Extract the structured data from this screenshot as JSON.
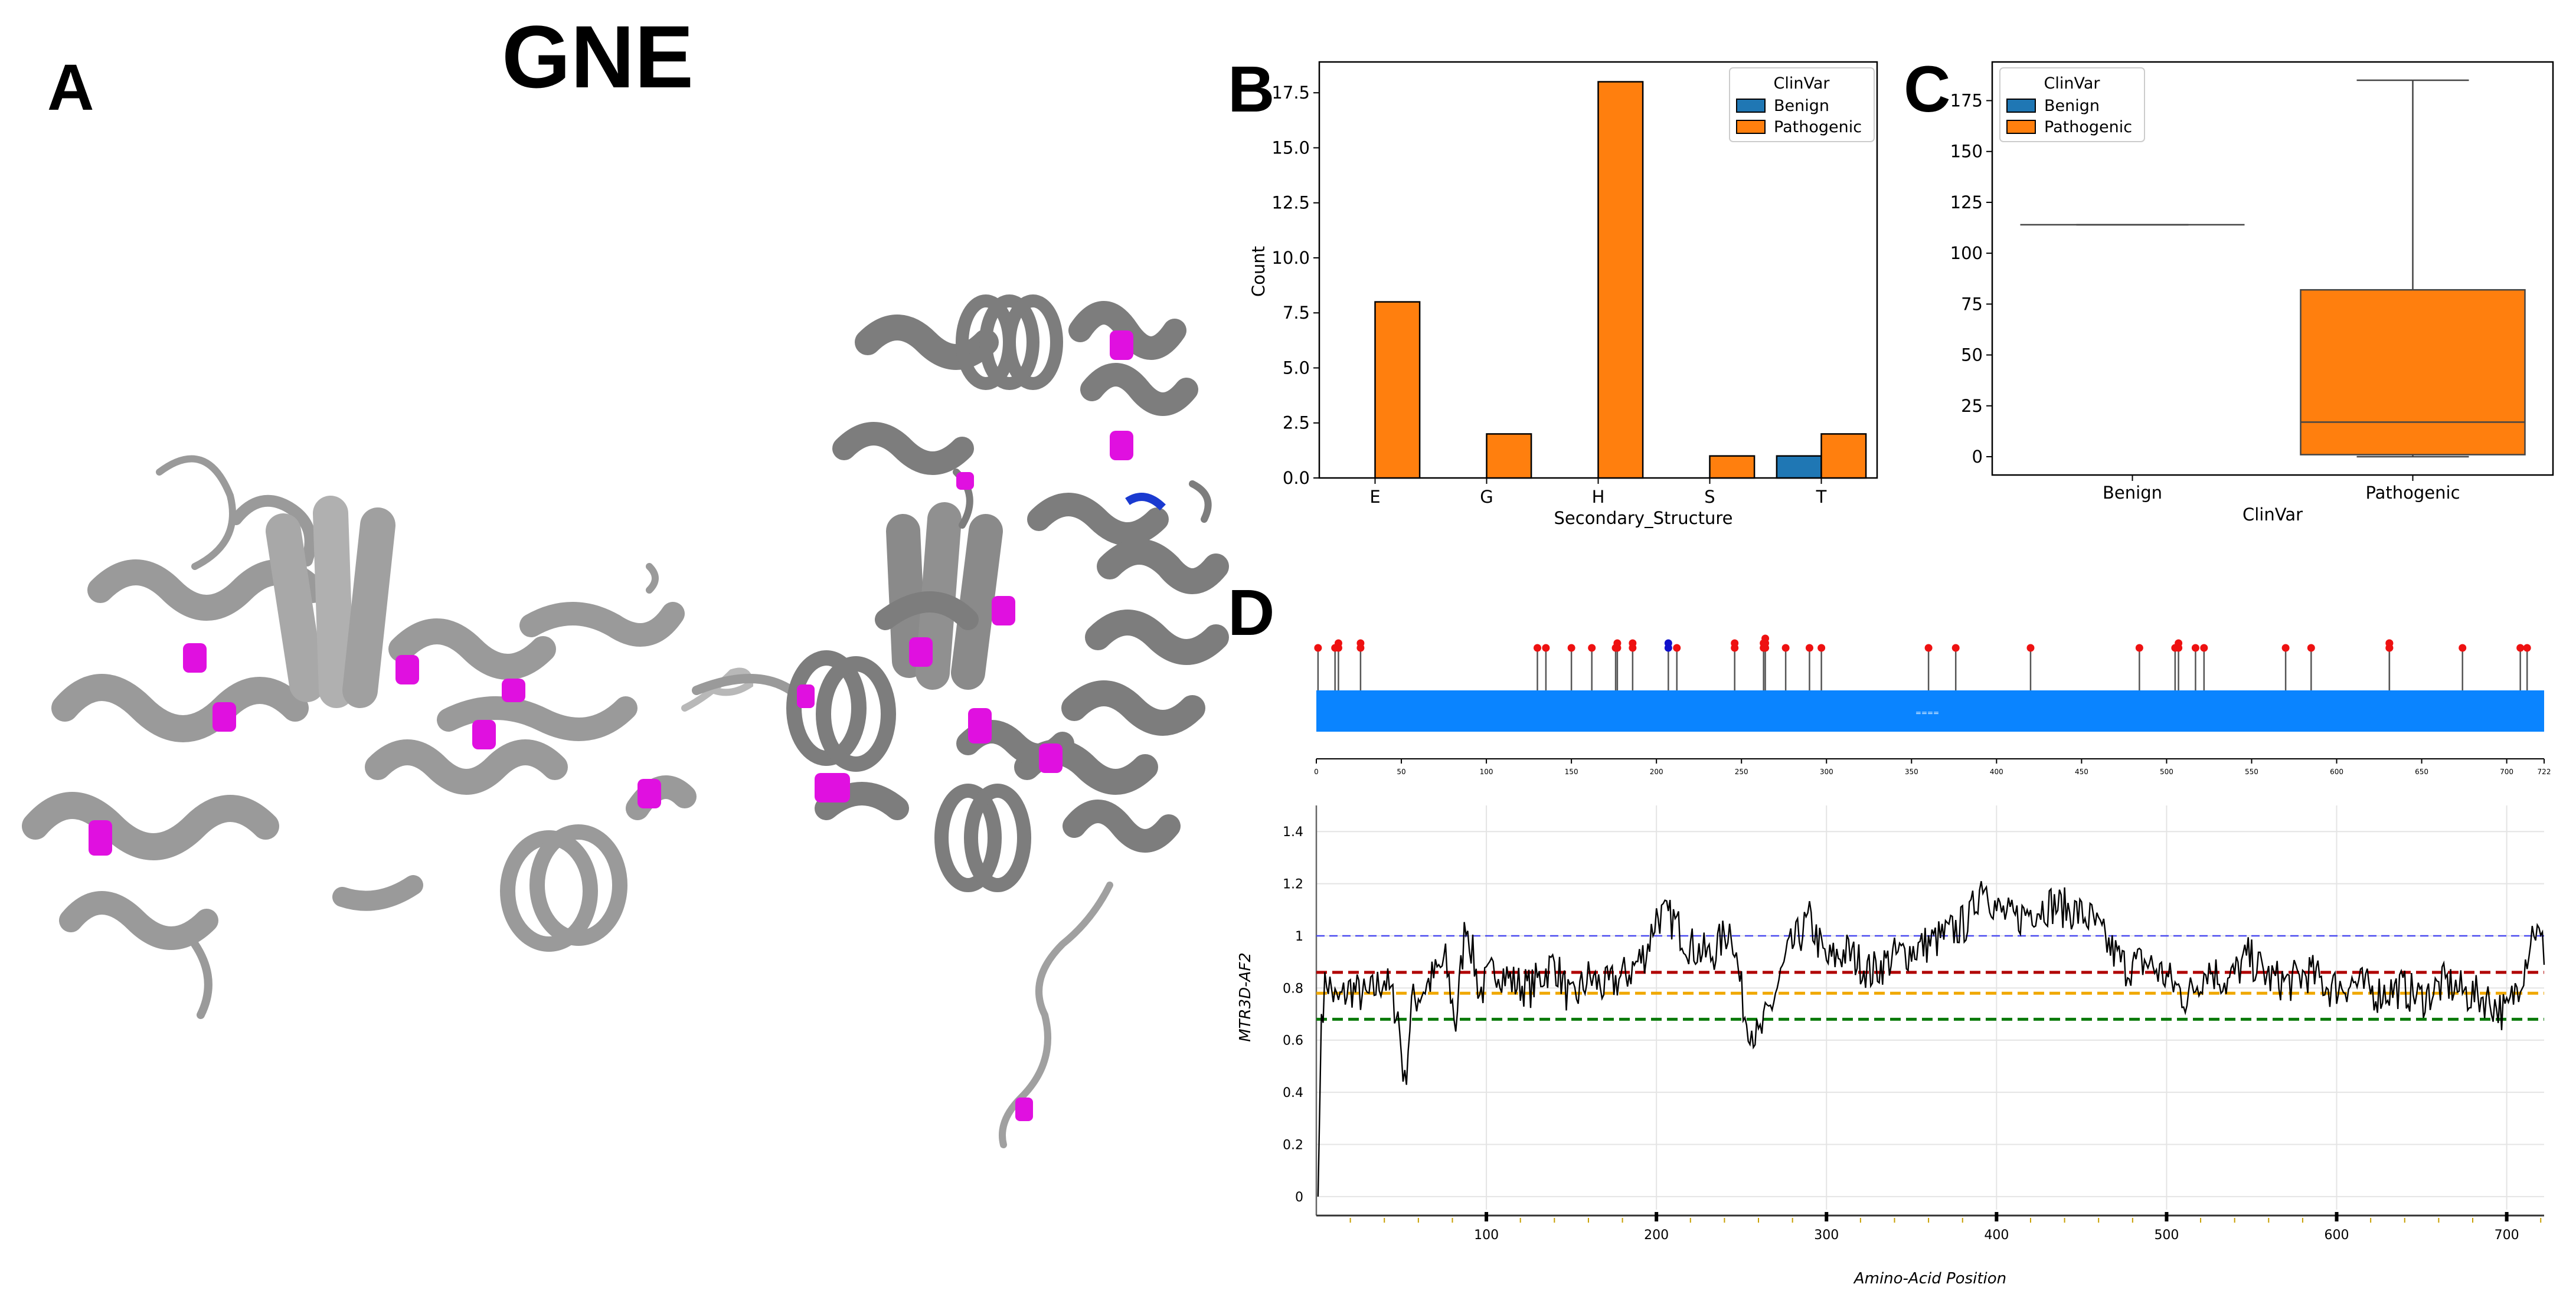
{
  "figure": {
    "gene_title": "GNE",
    "panel_labels": {
      "a": "A",
      "b": "B",
      "c": "C",
      "d": "D"
    }
  },
  "colors": {
    "benign": "#1f77b4",
    "pathogenic": "#ff7f0e",
    "lollipop_red": "#ee1111",
    "lollipop_blue": "#1111cc",
    "domain_bar": "#0a84ff",
    "ribbon_gray": "#9a9a9a",
    "ribbon_magenta": "#e010e0",
    "line_blue": "#4a4af0",
    "line_red": "#b00000",
    "line_orange": "#f0a800",
    "line_green": "#0a7a0a"
  },
  "chart_data": [
    {
      "id": "B",
      "type": "bar",
      "categories": [
        "E",
        "G",
        "H",
        "S",
        "T"
      ],
      "series": [
        {
          "name": "Benign",
          "values": [
            0,
            0,
            0,
            0,
            1
          ]
        },
        {
          "name": "Pathogenic",
          "values": [
            8,
            2,
            18,
            1,
            2
          ]
        }
      ],
      "xlabel": "Secondary_Structure",
      "ylabel": "Count",
      "ylim": [
        0,
        18.9
      ],
      "yticks": [
        0.0,
        2.5,
        5.0,
        7.5,
        10.0,
        12.5,
        15.0,
        17.5
      ],
      "ytick_labels": [
        "0.0",
        "2.5",
        "5.0",
        "7.5",
        "10.0",
        "12.5",
        "15.0",
        "17.5"
      ],
      "legend": {
        "title": "ClinVar",
        "entries": [
          "Benign",
          "Pathogenic"
        ],
        "placement": "top-right"
      }
    },
    {
      "id": "C",
      "type": "box",
      "categories": [
        "Benign",
        "Pathogenic"
      ],
      "boxes": [
        {
          "name": "Benign",
          "min": 114,
          "q1": 114,
          "median": 114,
          "q3": 114,
          "max": 114
        },
        {
          "name": "Pathogenic",
          "min": 0,
          "q1": 1,
          "median": 17,
          "q3": 82,
          "max": 185
        }
      ],
      "xlabel": "ClinVar",
      "ylabel": "",
      "ylim": [
        -9,
        194
      ],
      "yticks": [
        0,
        25,
        50,
        75,
        100,
        125,
        150,
        175
      ],
      "ytick_labels": [
        "0",
        "25",
        "50",
        "75",
        "100",
        "125",
        "150",
        "175"
      ],
      "legend": {
        "title": "ClinVar",
        "entries": [
          "Benign",
          "Pathogenic"
        ],
        "placement": "top-left"
      }
    },
    {
      "id": "D-lollipop",
      "type": "lollipop",
      "protein_length": 722,
      "domain_label": "====",
      "xticks": [
        0,
        50,
        100,
        150,
        200,
        250,
        300,
        350,
        400,
        450,
        500,
        550,
        600,
        650,
        700,
        722
      ],
      "xtick_labels": [
        "0",
        "50",
        "100",
        "150",
        "200",
        "250",
        "300",
        "350",
        "400",
        "450",
        "500",
        "550",
        "600",
        "650",
        "700",
        "722"
      ],
      "variants": [
        {
          "pos": 1,
          "count": 1,
          "class": "pathogenic"
        },
        {
          "pos": 11,
          "count": 1,
          "class": "pathogenic"
        },
        {
          "pos": 13,
          "count": 2,
          "class": "pathogenic"
        },
        {
          "pos": 26,
          "count": 2,
          "class": "pathogenic"
        },
        {
          "pos": 130,
          "count": 1,
          "class": "pathogenic"
        },
        {
          "pos": 135,
          "count": 1,
          "class": "pathogenic"
        },
        {
          "pos": 150,
          "count": 1,
          "class": "pathogenic"
        },
        {
          "pos": 162,
          "count": 1,
          "class": "pathogenic"
        },
        {
          "pos": 176,
          "count": 1,
          "class": "pathogenic"
        },
        {
          "pos": 177,
          "count": 2,
          "class": "pathogenic"
        },
        {
          "pos": 186,
          "count": 2,
          "class": "pathogenic"
        },
        {
          "pos": 207,
          "count": 2,
          "class": "benign"
        },
        {
          "pos": 212,
          "count": 1,
          "class": "pathogenic"
        },
        {
          "pos": 246,
          "count": 2,
          "class": "pathogenic"
        },
        {
          "pos": 263,
          "count": 2,
          "class": "pathogenic"
        },
        {
          "pos": 264,
          "count": 3,
          "class": "pathogenic"
        },
        {
          "pos": 276,
          "count": 1,
          "class": "pathogenic"
        },
        {
          "pos": 290,
          "count": 1,
          "class": "pathogenic"
        },
        {
          "pos": 297,
          "count": 1,
          "class": "pathogenic"
        },
        {
          "pos": 360,
          "count": 1,
          "class": "pathogenic"
        },
        {
          "pos": 376,
          "count": 1,
          "class": "pathogenic"
        },
        {
          "pos": 420,
          "count": 1,
          "class": "pathogenic"
        },
        {
          "pos": 484,
          "count": 1,
          "class": "pathogenic"
        },
        {
          "pos": 505,
          "count": 1,
          "class": "pathogenic"
        },
        {
          "pos": 507,
          "count": 2,
          "class": "pathogenic"
        },
        {
          "pos": 517,
          "count": 1,
          "class": "pathogenic"
        },
        {
          "pos": 522,
          "count": 1,
          "class": "pathogenic"
        },
        {
          "pos": 570,
          "count": 1,
          "class": "pathogenic"
        },
        {
          "pos": 585,
          "count": 1,
          "class": "pathogenic"
        },
        {
          "pos": 631,
          "count": 2,
          "class": "pathogenic"
        },
        {
          "pos": 631,
          "count": 2,
          "class": "pathogenic"
        },
        {
          "pos": 674,
          "count": 1,
          "class": "pathogenic"
        },
        {
          "pos": 708,
          "count": 1,
          "class": "pathogenic"
        },
        {
          "pos": 712,
          "count": 1,
          "class": "pathogenic"
        }
      ]
    },
    {
      "id": "D-line",
      "type": "line",
      "xlabel": "Amino-Acid Position",
      "ylabel": "MTR3D-AF2",
      "xlim": [
        0,
        722
      ],
      "ylim": [
        -0.05,
        1.5
      ],
      "xticks": [
        100,
        200,
        300,
        400,
        500,
        600,
        700
      ],
      "xtick_labels": [
        "100",
        "200",
        "300",
        "400",
        "500",
        "600",
        "700"
      ],
      "yticks": [
        0,
        0.2,
        0.4,
        0.6,
        0.8,
        1,
        1.2,
        1.4
      ],
      "ytick_labels": [
        "0",
        "0.2",
        "0.4",
        "0.6",
        "0.8",
        "1",
        "1.2",
        "1.4"
      ],
      "thresholds": [
        {
          "name": "blue",
          "value": 1.0,
          "color": "#4a4af0"
        },
        {
          "name": "red",
          "value": 0.86,
          "color": "#b00000"
        },
        {
          "name": "orange",
          "value": 0.78,
          "color": "#f0a800"
        },
        {
          "name": "green",
          "value": 0.68,
          "color": "#0a7a0a"
        }
      ],
      "series_anchors": [
        [
          1,
          0.0
        ],
        [
          3,
          0.7
        ],
        [
          6,
          0.84
        ],
        [
          12,
          0.74
        ],
        [
          20,
          0.8
        ],
        [
          30,
          0.76
        ],
        [
          40,
          0.84
        ],
        [
          48,
          0.7
        ],
        [
          52,
          0.42
        ],
        [
          56,
          0.74
        ],
        [
          66,
          0.82
        ],
        [
          76,
          0.9
        ],
        [
          82,
          0.66
        ],
        [
          88,
          1.07
        ],
        [
          96,
          0.78
        ],
        [
          106,
          0.88
        ],
        [
          116,
          0.82
        ],
        [
          126,
          0.8
        ],
        [
          140,
          0.9
        ],
        [
          150,
          0.74
        ],
        [
          160,
          0.84
        ],
        [
          170,
          0.8
        ],
        [
          184,
          0.86
        ],
        [
          194,
          0.94
        ],
        [
          200,
          1.08
        ],
        [
          210,
          1.06
        ],
        [
          220,
          0.96
        ],
        [
          232,
          0.92
        ],
        [
          244,
          1.04
        ],
        [
          252,
          0.7
        ],
        [
          260,
          0.6
        ],
        [
          268,
          0.74
        ],
        [
          278,
          0.94
        ],
        [
          290,
          1.06
        ],
        [
          300,
          0.9
        ],
        [
          312,
          0.94
        ],
        [
          326,
          0.86
        ],
        [
          340,
          0.92
        ],
        [
          356,
          0.96
        ],
        [
          370,
          1.0
        ],
        [
          384,
          1.06
        ],
        [
          392,
          1.22
        ],
        [
          400,
          1.1
        ],
        [
          410,
          1.06
        ],
        [
          420,
          1.1
        ],
        [
          432,
          1.12
        ],
        [
          444,
          1.1
        ],
        [
          456,
          1.06
        ],
        [
          466,
          0.96
        ],
        [
          476,
          0.88
        ],
        [
          488,
          0.9
        ],
        [
          500,
          0.84
        ],
        [
          512,
          0.76
        ],
        [
          524,
          0.88
        ],
        [
          536,
          0.82
        ],
        [
          548,
          0.92
        ],
        [
          560,
          0.84
        ],
        [
          572,
          0.82
        ],
        [
          584,
          0.86
        ],
        [
          596,
          0.8
        ],
        [
          610,
          0.82
        ],
        [
          624,
          0.78
        ],
        [
          638,
          0.8
        ],
        [
          650,
          0.76
        ],
        [
          664,
          0.82
        ],
        [
          676,
          0.78
        ],
        [
          688,
          0.76
        ],
        [
          700,
          0.7
        ],
        [
          710,
          0.88
        ],
        [
          716,
          1.04
        ],
        [
          722,
          0.94
        ]
      ]
    }
  ]
}
